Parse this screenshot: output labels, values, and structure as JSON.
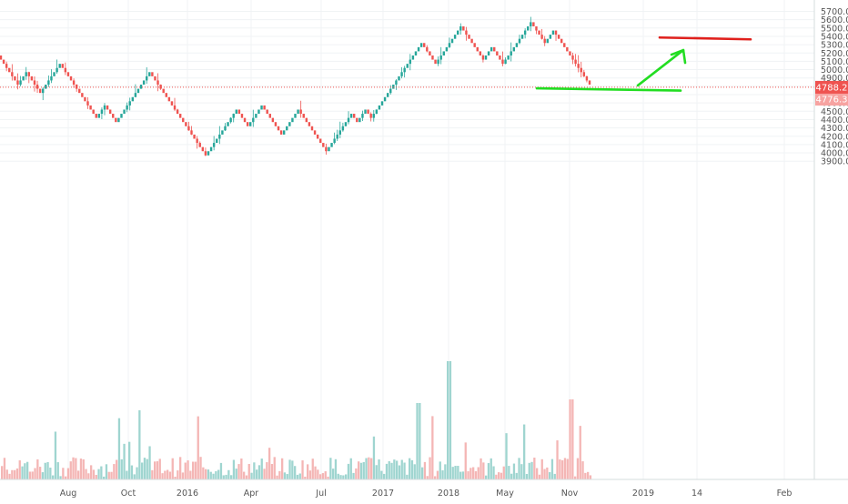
{
  "chart_data": {
    "type": "candlestick",
    "title": "",
    "xlabel": "",
    "ylabel": "",
    "ylim": [
      3850,
      5730
    ],
    "y_ticks": [
      "5700.0",
      "5600.0",
      "5500.0",
      "5400.0",
      "5300.0",
      "5200.0",
      "5100.0",
      "5000.0",
      "4900.0",
      "4800.0",
      "4700.0",
      "4600.0",
      "4500.0",
      "4400.0",
      "4300.0",
      "4200.0",
      "4100.0",
      "4000.0",
      "3900.0"
    ],
    "y_tick_values": [
      5700,
      5600,
      5500,
      5400,
      5300,
      5200,
      5100,
      5000,
      4900,
      4800,
      4700,
      4600,
      4500,
      4400,
      4300,
      4200,
      4100,
      4000,
      3900
    ],
    "x_ticks": [
      "Aug",
      "Oct",
      "2016",
      "Apr",
      "Jul",
      "2017",
      "2018",
      "May",
      "Nov",
      "2019",
      "14",
      "Feb"
    ],
    "price_labels": {
      "current": "4788.2",
      "previous": "4776.3"
    },
    "current_price_value": 4788.2,
    "previous_price_value": 4776.3,
    "waypoints": [
      5170,
      5040,
      4780,
      4920,
      4990,
      4700,
      5090,
      4830,
      4380,
      4590,
      4370,
      4980,
      4840,
      4860,
      4530,
      4320,
      3960,
      4160,
      4550,
      4310,
      4570,
      4210,
      4550,
      4190,
      4020,
      4250,
      4470,
      4370,
      4520,
      4380,
      4880,
      5350,
      5060,
      5520,
      5160,
      5110,
      5300,
      5060,
      5610,
      5310,
      5500,
      5100,
      4780
    ],
    "colors": {
      "up": "#26a69a",
      "down": "#ef5350",
      "vol_up": "#9fd5d0",
      "vol_down": "#f4b6b5",
      "current_line": "#ef5350",
      "previous_label": "#f7a3a1",
      "support_line": "#22dd22",
      "target_line": "#e0201c",
      "arrow": "#22dd22",
      "grid": "#f0f3f5",
      "axis_text": "#555555"
    },
    "annotations": [
      {
        "type": "horizontal-line",
        "name": "support",
        "price": 4765,
        "color": "#22dd22"
      },
      {
        "type": "horizontal-line",
        "name": "target",
        "price": 5375,
        "color": "#e0201c"
      },
      {
        "type": "arrow",
        "name": "projection",
        "from_price": 4810,
        "to_price": 5235,
        "color": "#22dd22"
      }
    ]
  }
}
